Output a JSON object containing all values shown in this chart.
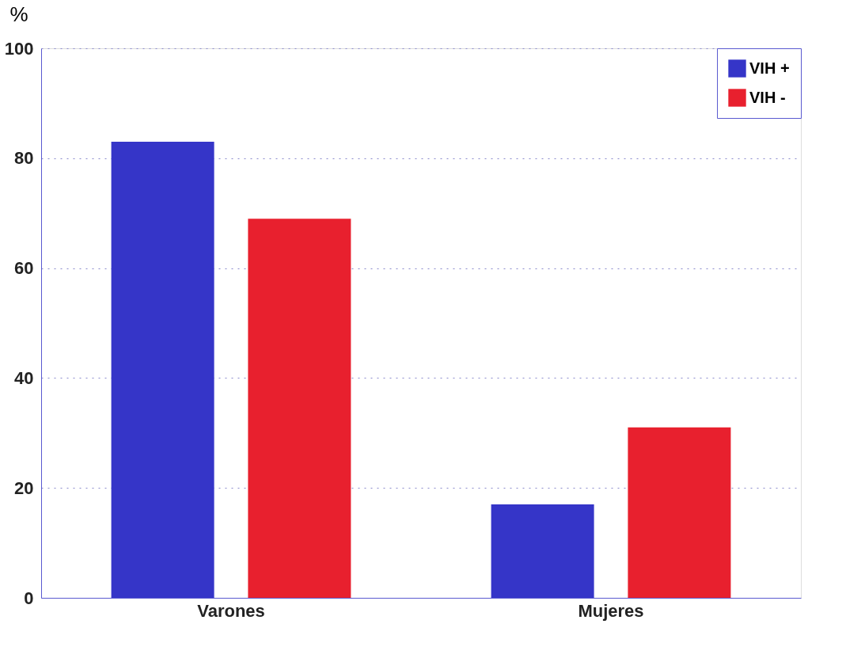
{
  "chart_data": {
    "type": "bar",
    "ylabel": "%",
    "categories": [
      "Varones",
      "Mujeres"
    ],
    "series": [
      {
        "name": "VIH +",
        "color": "#3535c8",
        "values": [
          83,
          17
        ]
      },
      {
        "name": "VIH -",
        "color": "#e8202e",
        "values": [
          69,
          31
        ]
      }
    ],
    "ylim": [
      0,
      100
    ],
    "yticks": [
      0,
      20,
      40,
      60,
      80,
      100
    ],
    "grid": "y",
    "legend": "top right"
  }
}
